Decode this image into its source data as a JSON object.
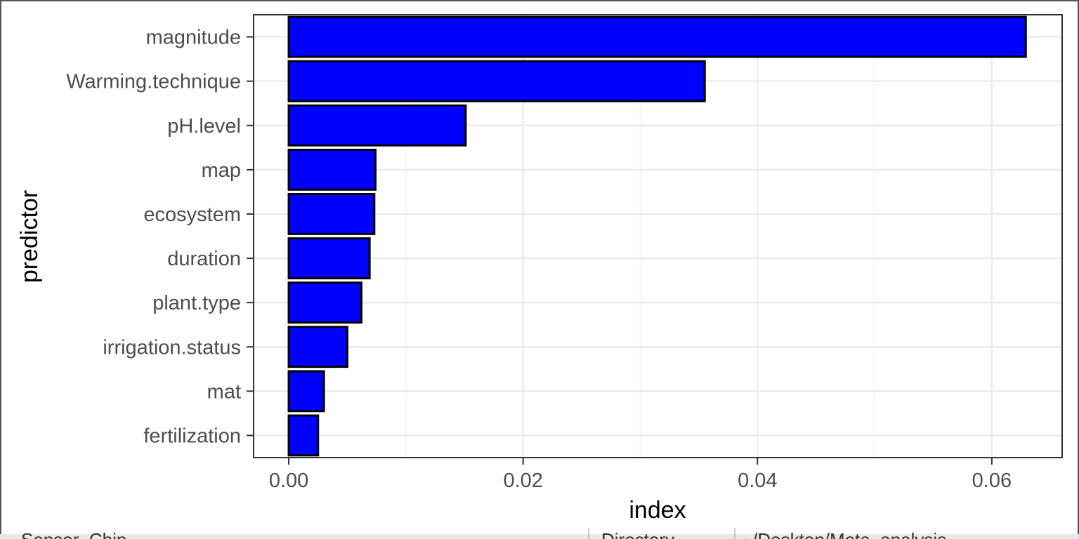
{
  "colors": {
    "bar_fill": "#0000FF",
    "bar_stroke": "#000000",
    "panel_border": "#333333",
    "grid_major": "#EBEBEB",
    "grid_minor": "#F5F5F5",
    "tick_text": "#4D4D4D",
    "window_frame": "#555555",
    "bottom_strip_bg": "#E8E8E8"
  },
  "bottom_strip": {
    "left_text": "Sensor_Chip",
    "middle_text": "Directory",
    "right_text": "~/Desktop/Meta_analysis"
  },
  "chart_data": {
    "type": "bar",
    "orientation": "horizontal",
    "title": "",
    "xlabel": "index",
    "ylabel": "predictor",
    "categories": [
      "magnitude",
      "Warming.technique",
      "pH.level",
      "map",
      "ecosystem",
      "duration",
      "plant.type",
      "irrigation.status",
      "mat",
      "fertilization"
    ],
    "values": [
      0.0629,
      0.0355,
      0.0151,
      0.0074,
      0.0073,
      0.0069,
      0.0062,
      0.005,
      0.003,
      0.0025
    ],
    "xlim": [
      -0.003,
      0.066
    ],
    "x_ticks": [
      0,
      0.02,
      0.04,
      0.06
    ],
    "x_tick_labels": [
      "0.00",
      "0.02",
      "0.04",
      "0.06"
    ],
    "grid": true,
    "legend": "none"
  }
}
